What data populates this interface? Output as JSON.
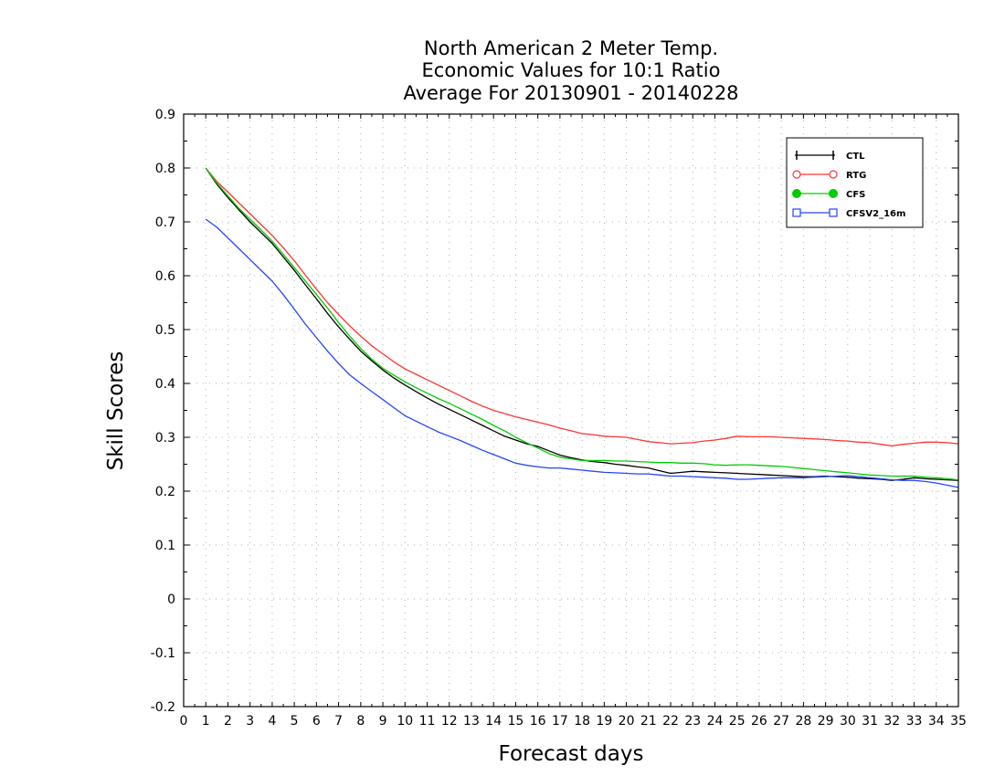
{
  "chart_data": {
    "type": "line",
    "title_lines": [
      "North American 2 Meter Temp.",
      "Economic Values for 10:1 Ratio",
      "Average For 20130901 - 20140228"
    ],
    "xlabel": "Forecast days",
    "ylabel": "Skill Scores",
    "xlim": [
      0,
      35
    ],
    "ylim": [
      -0.2,
      0.9
    ],
    "x_ticks": [
      "0",
      "1",
      "2",
      "3",
      "4",
      "5",
      "6",
      "7",
      "8",
      "9",
      "10",
      "11",
      "12",
      "13",
      "14",
      "15",
      "16",
      "17",
      "18",
      "19",
      "20",
      "21",
      "22",
      "23",
      "24",
      "25",
      "26",
      "27",
      "28",
      "29",
      "30",
      "31",
      "32",
      "33",
      "34",
      "35"
    ],
    "y_ticks": [
      "-0.2",
      "-0.1",
      "0",
      "0.1",
      "0.2",
      "0.3",
      "0.4",
      "0.5",
      "0.6",
      "0.7",
      "0.8",
      "0.9"
    ],
    "grid": true,
    "legend_position": "top-right",
    "x": [
      1,
      1.5,
      2,
      2.5,
      3,
      3.5,
      4,
      4.5,
      5,
      5.5,
      6,
      6.5,
      7,
      7.5,
      8,
      8.5,
      9,
      9.5,
      10,
      10.5,
      11,
      11.5,
      12,
      12.5,
      13,
      13.5,
      14,
      14.5,
      15,
      15.5,
      16,
      16.5,
      17,
      17.5,
      18,
      18.5,
      19,
      19.5,
      20,
      20.5,
      21,
      21.5,
      22,
      22.5,
      23,
      23.5,
      24,
      24.5,
      25,
      25.5,
      26,
      26.5,
      27,
      27.5,
      28,
      28.5,
      29,
      29.5,
      30,
      30.5,
      31,
      31.5,
      32,
      32.5,
      33,
      33.5,
      34,
      34.5,
      35
    ],
    "series": [
      {
        "name": "CTL",
        "color": "#000000",
        "marker": "plus",
        "values": [
          0.8,
          0.77,
          0.745,
          0.722,
          0.7,
          0.68,
          0.66,
          0.635,
          0.61,
          0.583,
          0.557,
          0.53,
          0.505,
          0.482,
          0.46,
          0.442,
          0.425,
          0.41,
          0.397,
          0.385,
          0.373,
          0.362,
          0.352,
          0.342,
          0.332,
          0.322,
          0.312,
          0.302,
          0.295,
          0.288,
          0.283,
          0.275,
          0.267,
          0.262,
          0.258,
          0.255,
          0.253,
          0.25,
          0.248,
          0.245,
          0.243,
          0.238,
          0.233,
          0.235,
          0.237,
          0.236,
          0.235,
          0.234,
          0.233,
          0.232,
          0.231,
          0.23,
          0.229,
          0.228,
          0.227,
          0.227,
          0.228,
          0.227,
          0.226,
          0.224,
          0.223,
          0.222,
          0.22,
          0.222,
          0.225,
          0.223,
          0.222,
          0.221,
          0.22
        ]
      },
      {
        "name": "RTG",
        "color": "#ff3333",
        "marker": "circle-open",
        "values": [
          0.8,
          0.775,
          0.755,
          0.735,
          0.715,
          0.695,
          0.675,
          0.652,
          0.628,
          0.601,
          0.575,
          0.55,
          0.528,
          0.507,
          0.488,
          0.47,
          0.455,
          0.44,
          0.427,
          0.417,
          0.407,
          0.397,
          0.387,
          0.377,
          0.367,
          0.358,
          0.35,
          0.344,
          0.338,
          0.333,
          0.328,
          0.323,
          0.317,
          0.312,
          0.307,
          0.305,
          0.302,
          0.301,
          0.3,
          0.296,
          0.292,
          0.29,
          0.288,
          0.289,
          0.29,
          0.293,
          0.295,
          0.298,
          0.302,
          0.301,
          0.301,
          0.301,
          0.3,
          0.299,
          0.298,
          0.297,
          0.296,
          0.294,
          0.293,
          0.291,
          0.29,
          0.287,
          0.284,
          0.287,
          0.289,
          0.291,
          0.291,
          0.29,
          0.288
        ]
      },
      {
        "name": "CFS",
        "color": "#00cc00",
        "marker": "circle-filled",
        "values": [
          0.8,
          0.772,
          0.748,
          0.725,
          0.705,
          0.685,
          0.664,
          0.64,
          0.615,
          0.59,
          0.565,
          0.54,
          0.513,
          0.488,
          0.465,
          0.445,
          0.428,
          0.415,
          0.403,
          0.392,
          0.382,
          0.372,
          0.363,
          0.353,
          0.343,
          0.333,
          0.322,
          0.312,
          0.3,
          0.29,
          0.28,
          0.27,
          0.263,
          0.26,
          0.257,
          0.257,
          0.257,
          0.256,
          0.256,
          0.255,
          0.254,
          0.253,
          0.253,
          0.252,
          0.252,
          0.251,
          0.249,
          0.248,
          0.249,
          0.249,
          0.248,
          0.247,
          0.246,
          0.244,
          0.242,
          0.24,
          0.238,
          0.236,
          0.234,
          0.232,
          0.23,
          0.229,
          0.228,
          0.228,
          0.228,
          0.226,
          0.225,
          0.223,
          0.221
        ]
      },
      {
        "name": "CFSV2_16m",
        "color": "#2244ff",
        "marker": "square-open",
        "values": [
          0.705,
          0.69,
          0.67,
          0.65,
          0.63,
          0.61,
          0.59,
          0.565,
          0.538,
          0.51,
          0.485,
          0.46,
          0.437,
          0.416,
          0.4,
          0.385,
          0.37,
          0.355,
          0.34,
          0.33,
          0.32,
          0.31,
          0.302,
          0.294,
          0.285,
          0.276,
          0.268,
          0.26,
          0.252,
          0.248,
          0.245,
          0.243,
          0.243,
          0.241,
          0.239,
          0.237,
          0.235,
          0.234,
          0.233,
          0.232,
          0.232,
          0.23,
          0.228,
          0.228,
          0.227,
          0.226,
          0.225,
          0.224,
          0.222,
          0.222,
          0.223,
          0.224,
          0.225,
          0.225,
          0.225,
          0.226,
          0.227,
          0.228,
          0.229,
          0.227,
          0.225,
          0.223,
          0.221,
          0.22,
          0.22,
          0.218,
          0.215,
          0.211,
          0.207
        ]
      }
    ]
  }
}
